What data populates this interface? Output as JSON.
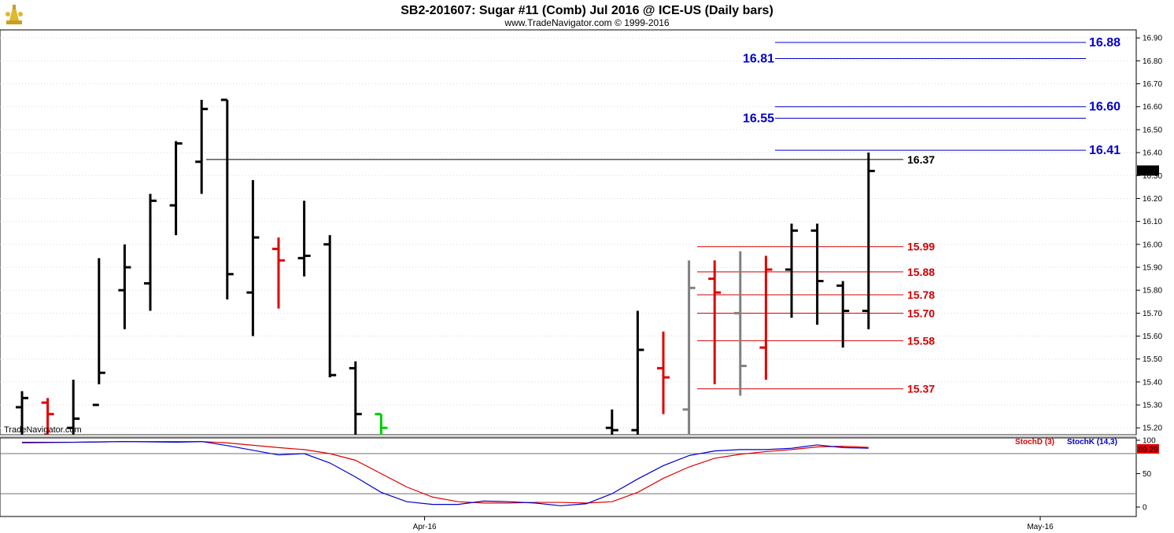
{
  "header": {
    "title": "SB2-201607:  Sugar #11 (Comb) Jul 2016 @ ICE-US  (Daily bars)",
    "subtitle": "www.TradeNavigator.com © 1999-2016",
    "watermark": "TradeNavigator.com"
  },
  "colors": {
    "bar_black": "#000000",
    "bar_red": "#e00000",
    "bar_gray": "#808080",
    "bar_green": "#00cc00",
    "level_blue": "#0000cc",
    "level_red": "#d00000",
    "stoch_d": "#e00000",
    "stoch_k": "#0000cc"
  },
  "chart_data": [
    {
      "type": "ohlc",
      "price_axis": {
        "ylim": [
          15.17,
          16.935
        ],
        "ticks": [
          "15.20",
          "15.30",
          "15.40",
          "15.50",
          "15.60",
          "15.70",
          "15.80",
          "15.90",
          "16.00",
          "16.10",
          "16.20",
          "16.30",
          "16.40",
          "16.50",
          "16.60",
          "16.70",
          "16.80",
          "16.90"
        ],
        "last_price_label": "16.32"
      },
      "x_labels": [
        {
          "label": "Apr-16",
          "at_bar": 16
        },
        {
          "label": "May-16",
          "at_bar": 40
        }
      ],
      "bars": [
        {
          "o": 15.29,
          "h": 15.36,
          "l": 15.17,
          "c": 15.33,
          "color": "black"
        },
        {
          "o": 15.31,
          "h": 15.33,
          "l": 15.17,
          "c": 15.26,
          "color": "red"
        },
        {
          "o": 15.2,
          "h": 15.41,
          "l": 15.17,
          "c": 15.24,
          "color": "black"
        },
        {
          "o": 15.3,
          "h": 15.94,
          "l": 15.39,
          "c": 15.44,
          "color": "black"
        },
        {
          "o": 15.8,
          "h": 16.0,
          "l": 15.63,
          "c": 15.9,
          "color": "black"
        },
        {
          "o": 15.83,
          "h": 16.22,
          "l": 15.71,
          "c": 16.19,
          "color": "black"
        },
        {
          "o": 16.17,
          "h": 16.45,
          "l": 16.04,
          "c": 16.44,
          "color": "black"
        },
        {
          "o": 16.36,
          "h": 16.63,
          "l": 16.22,
          "c": 16.59,
          "color": "black"
        },
        {
          "o": 16.63,
          "h": 16.63,
          "l": 15.76,
          "c": 15.87,
          "color": "black"
        },
        {
          "o": 15.79,
          "h": 16.28,
          "l": 15.6,
          "c": 16.03,
          "color": "black"
        },
        {
          "o": 15.98,
          "h": 16.03,
          "l": 15.72,
          "c": 15.93,
          "color": "red"
        },
        {
          "o": 15.94,
          "h": 16.19,
          "l": 15.86,
          "c": 15.95,
          "color": "black"
        },
        {
          "o": 16.0,
          "h": 16.04,
          "l": 15.42,
          "c": 15.43,
          "color": "black"
        },
        {
          "o": 15.46,
          "h": 15.49,
          "l": 15.17,
          "c": 15.26,
          "color": "black"
        },
        {
          "o": 15.26,
          "h": 15.26,
          "l": 15.17,
          "c": 15.2,
          "color": "green"
        },
        {
          "o": null,
          "h": null,
          "l": null,
          "c": null,
          "color": "none"
        },
        {
          "o": null,
          "h": null,
          "l": null,
          "c": null,
          "color": "none"
        },
        {
          "o": null,
          "h": null,
          "l": null,
          "c": null,
          "color": "none"
        },
        {
          "o": null,
          "h": null,
          "l": null,
          "c": null,
          "color": "none"
        },
        {
          "o": null,
          "h": null,
          "l": null,
          "c": null,
          "color": "none"
        },
        {
          "o": null,
          "h": null,
          "l": null,
          "c": null,
          "color": "none"
        },
        {
          "o": null,
          "h": null,
          "l": null,
          "c": null,
          "color": "none"
        },
        {
          "o": null,
          "h": null,
          "l": null,
          "c": null,
          "color": "none"
        },
        {
          "o": 15.2,
          "h": 15.28,
          "l": 15.17,
          "c": 15.19,
          "color": "black"
        },
        {
          "o": 15.19,
          "h": 15.71,
          "l": 15.17,
          "c": 15.54,
          "color": "black"
        },
        {
          "o": 15.46,
          "h": 15.62,
          "l": 15.26,
          "c": 15.42,
          "color": "red"
        },
        {
          "o": 15.28,
          "h": 15.93,
          "l": 15.17,
          "c": 15.81,
          "color": "gray"
        },
        {
          "o": 15.85,
          "h": 15.93,
          "l": 15.39,
          "c": 15.79,
          "color": "red"
        },
        {
          "o": 15.7,
          "h": 15.97,
          "l": 15.34,
          "c": 15.47,
          "color": "gray"
        },
        {
          "o": 15.55,
          "h": 15.95,
          "l": 15.41,
          "c": 15.89,
          "color": "red"
        },
        {
          "o": 15.89,
          "h": 16.09,
          "l": 15.68,
          "c": 16.06,
          "color": "black"
        },
        {
          "o": 16.06,
          "h": 16.09,
          "l": 15.65,
          "c": 15.84,
          "color": "black"
        },
        {
          "o": 15.82,
          "h": 15.84,
          "l": 15.55,
          "c": 15.71,
          "color": "black"
        },
        {
          "o": 15.71,
          "h": 16.4,
          "l": 15.63,
          "c": 16.32,
          "color": "black"
        }
      ],
      "levels": [
        {
          "value": 16.88,
          "label": "16.88",
          "color": "blue"
        },
        {
          "value": 16.81,
          "label": "16.81",
          "color": "blue"
        },
        {
          "value": 16.6,
          "label": "16.60",
          "color": "blue"
        },
        {
          "value": 16.55,
          "label": "16.55",
          "color": "blue"
        },
        {
          "value": 16.41,
          "label": "16.41",
          "color": "blue"
        },
        {
          "value": 16.37,
          "label": "16.37",
          "color": "black"
        },
        {
          "value": 15.99,
          "label": "15.99",
          "color": "red"
        },
        {
          "value": 15.88,
          "label": "15.88",
          "color": "red"
        },
        {
          "value": 15.78,
          "label": "15.78",
          "color": "red"
        },
        {
          "value": 15.7,
          "label": "15.70",
          "color": "red"
        },
        {
          "value": 15.58,
          "label": "15.58",
          "color": "red"
        },
        {
          "value": 15.37,
          "label": "15.37",
          "color": "red"
        }
      ]
    },
    {
      "type": "line",
      "indicator": "stochastic",
      "ylim": [
        0,
        100
      ],
      "ticks": [
        "0",
        "50",
        "100"
      ],
      "reference_lines": [
        20,
        80
      ],
      "last_value_label": "89.29",
      "legend": [
        "StochD (3)",
        "StochK (14,3)"
      ],
      "series": [
        {
          "name": "StochD (3)",
          "color": "red",
          "points": [
            [
              0,
              96
            ],
            [
              2,
              97
            ],
            [
              4,
              98
            ],
            [
              6,
              98
            ],
            [
              7,
              98
            ],
            [
              8,
              96
            ],
            [
              10,
              89
            ],
            [
              11,
              86
            ],
            [
              12,
              80
            ],
            [
              13,
              70
            ],
            [
              14,
              50
            ],
            [
              15,
              30
            ],
            [
              16,
              15
            ],
            [
              17,
              8
            ],
            [
              18,
              6
            ],
            [
              19,
              6
            ],
            [
              20,
              7
            ],
            [
              21,
              7
            ],
            [
              22,
              6
            ],
            [
              23,
              8
            ],
            [
              24,
              22
            ],
            [
              25,
              43
            ],
            [
              26,
              60
            ],
            [
              27,
              73
            ],
            [
              28,
              79
            ],
            [
              29,
              83
            ],
            [
              30,
              86
            ],
            [
              31,
              90
            ],
            [
              32,
              91
            ],
            [
              33,
              89.29
            ]
          ]
        },
        {
          "name": "StochK (14,3)",
          "color": "blue",
          "points": [
            [
              0,
              97
            ],
            [
              2,
              97
            ],
            [
              4,
              98
            ],
            [
              6,
              97
            ],
            [
              7,
              98
            ],
            [
              8,
              92
            ],
            [
              10,
              78
            ],
            [
              11,
              80
            ],
            [
              12,
              66
            ],
            [
              13,
              45
            ],
            [
              14,
              22
            ],
            [
              15,
              8
            ],
            [
              16,
              4
            ],
            [
              17,
              4
            ],
            [
              18,
              9
            ],
            [
              19,
              8
            ],
            [
              20,
              6
            ],
            [
              21,
              2
            ],
            [
              22,
              5
            ],
            [
              23,
              20
            ],
            [
              24,
              42
            ],
            [
              25,
              62
            ],
            [
              26,
              77
            ],
            [
              27,
              84
            ],
            [
              28,
              86
            ],
            [
              29,
              86
            ],
            [
              30,
              88
            ],
            [
              31,
              93
            ],
            [
              32,
              89
            ],
            [
              33,
              88
            ]
          ]
        }
      ]
    }
  ]
}
